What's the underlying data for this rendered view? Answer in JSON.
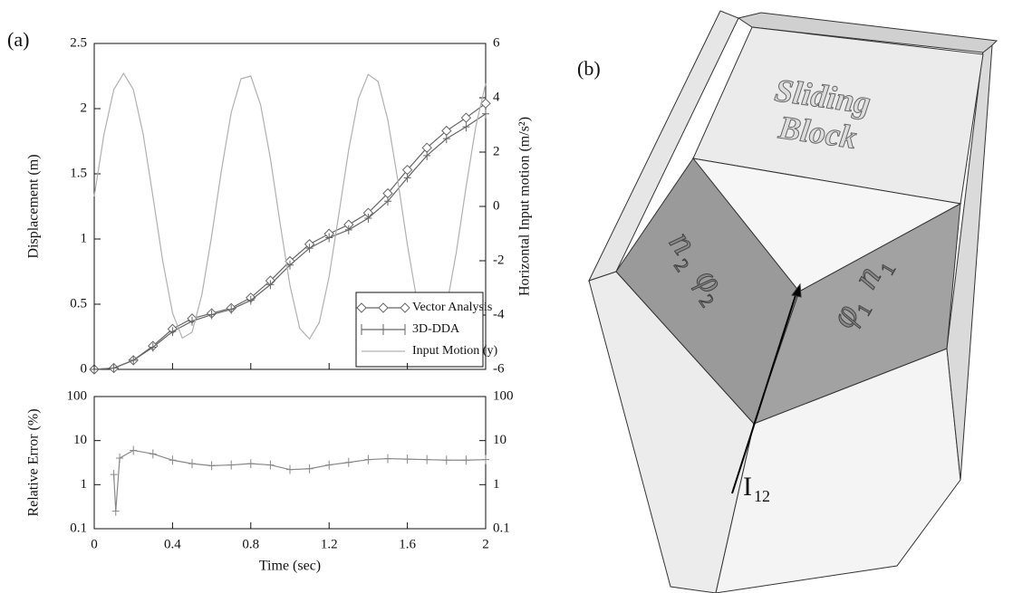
{
  "chart_data": [
    {
      "type": "line",
      "panel_label": "(a)",
      "ylabel": "Displacement (m)",
      "y2label": "Horizontal Input motion (m/s²)",
      "xlim": [
        0,
        2
      ],
      "ylim": [
        0,
        2.5
      ],
      "yticks": [
        0,
        0.5,
        1,
        1.5,
        2,
        2.5
      ],
      "y2lim": [
        -6,
        6
      ],
      "y2ticks": [
        -6,
        -4,
        -2,
        0,
        2,
        4,
        6
      ],
      "legend": "lower right",
      "series": [
        {
          "name": "Vector Analysis",
          "color": "#666666",
          "marker": "diamond",
          "x": [
            0,
            0.1,
            0.2,
            0.3,
            0.4,
            0.5,
            0.6,
            0.7,
            0.8,
            0.9,
            1.0,
            1.1,
            1.2,
            1.3,
            1.4,
            1.5,
            1.6,
            1.7,
            1.8,
            1.9,
            2.0
          ],
          "values": [
            0,
            0.01,
            0.07,
            0.18,
            0.31,
            0.39,
            0.43,
            0.47,
            0.55,
            0.68,
            0.83,
            0.96,
            1.04,
            1.11,
            1.2,
            1.35,
            1.53,
            1.7,
            1.83,
            1.93,
            2.04
          ]
        },
        {
          "name": "3D-DDA",
          "color": "#666666",
          "marker": "plus",
          "x": [
            0,
            0.1,
            0.2,
            0.3,
            0.4,
            0.5,
            0.6,
            0.7,
            0.8,
            0.9,
            1.0,
            1.1,
            1.2,
            1.3,
            1.4,
            1.5,
            1.6,
            1.7,
            1.8,
            1.9,
            2.0
          ],
          "values": [
            0,
            0.01,
            0.07,
            0.17,
            0.29,
            0.37,
            0.42,
            0.46,
            0.53,
            0.65,
            0.8,
            0.93,
            1.01,
            1.07,
            1.16,
            1.29,
            1.47,
            1.64,
            1.77,
            1.86,
            1.96
          ]
        },
        {
          "name": "Input Motion (y)",
          "color": "#b0b0b0",
          "marker": "none",
          "axis": "y2",
          "x": [
            0,
            0.05,
            0.1,
            0.15,
            0.2,
            0.25,
            0.3,
            0.35,
            0.4,
            0.45,
            0.5,
            0.55,
            0.6,
            0.65,
            0.7,
            0.75,
            0.8,
            0.85,
            0.9,
            0.95,
            1.0,
            1.05,
            1.1,
            1.15,
            1.2,
            1.25,
            1.3,
            1.35,
            1.4,
            1.45,
            1.5,
            1.55,
            1.6,
            1.65,
            1.7,
            1.75,
            1.8,
            1.85,
            1.9,
            1.95,
            2.0
          ],
          "values": [
            0.37,
            2.66,
            4.3,
            4.9,
            4.3,
            2.66,
            0.36,
            -2.01,
            -3.92,
            -4.85,
            -4.63,
            -3.25,
            -1.09,
            1.33,
            3.46,
            4.7,
            4.8,
            3.74,
            1.77,
            -0.64,
            -2.91,
            -4.49,
            -4.88,
            -4.27,
            -2.59,
            -0.28,
            2.08,
            3.97,
            4.86,
            4.6,
            3.19,
            1.01,
            -1.41,
            -3.51,
            -4.72,
            -4.78,
            -3.69,
            -1.69,
            0.72,
            2.96,
            4.52
          ]
        }
      ]
    },
    {
      "type": "line",
      "xlabel": "Time (sec)",
      "ylabel": "Relative Error (%)",
      "log_y": true,
      "xlim": [
        0,
        2
      ],
      "xticks": [
        0,
        0.4,
        0.8,
        1.2,
        1.6,
        2
      ],
      "ylim": [
        0.1,
        100
      ],
      "yticks": [
        0.1,
        1,
        10,
        100
      ],
      "y2lim": [
        0.1,
        100
      ],
      "y2ticks": [
        0.1,
        1,
        10,
        100
      ],
      "series": [
        {
          "color": "#888888",
          "marker": "plus",
          "x": [
            0.1,
            0.11,
            0.13,
            0.2,
            0.3,
            0.4,
            0.5,
            0.6,
            0.7,
            0.8,
            0.9,
            1.0,
            1.1,
            1.2,
            1.3,
            1.4,
            1.5,
            1.6,
            1.7,
            1.8,
            1.9,
            2.0
          ],
          "values": [
            1.7,
            0.25,
            4,
            6,
            5,
            3.6,
            3,
            2.7,
            2.8,
            3,
            2.8,
            2.2,
            2.3,
            2.8,
            3.2,
            3.7,
            3.9,
            3.8,
            3.7,
            3.6,
            3.6,
            3.7
          ]
        }
      ]
    }
  ],
  "figure_b": {
    "panel_label": "(b)",
    "block_line1": "Sliding",
    "block_line2": "Block",
    "n2": "n",
    "n2_sub": "2",
    "phi2": "φ",
    "phi2_sub": "2",
    "n1": "n",
    "n1_sub": "1",
    "phi1": "φ",
    "phi1_sub": "1",
    "line_label": "I",
    "line_sub": "12"
  }
}
